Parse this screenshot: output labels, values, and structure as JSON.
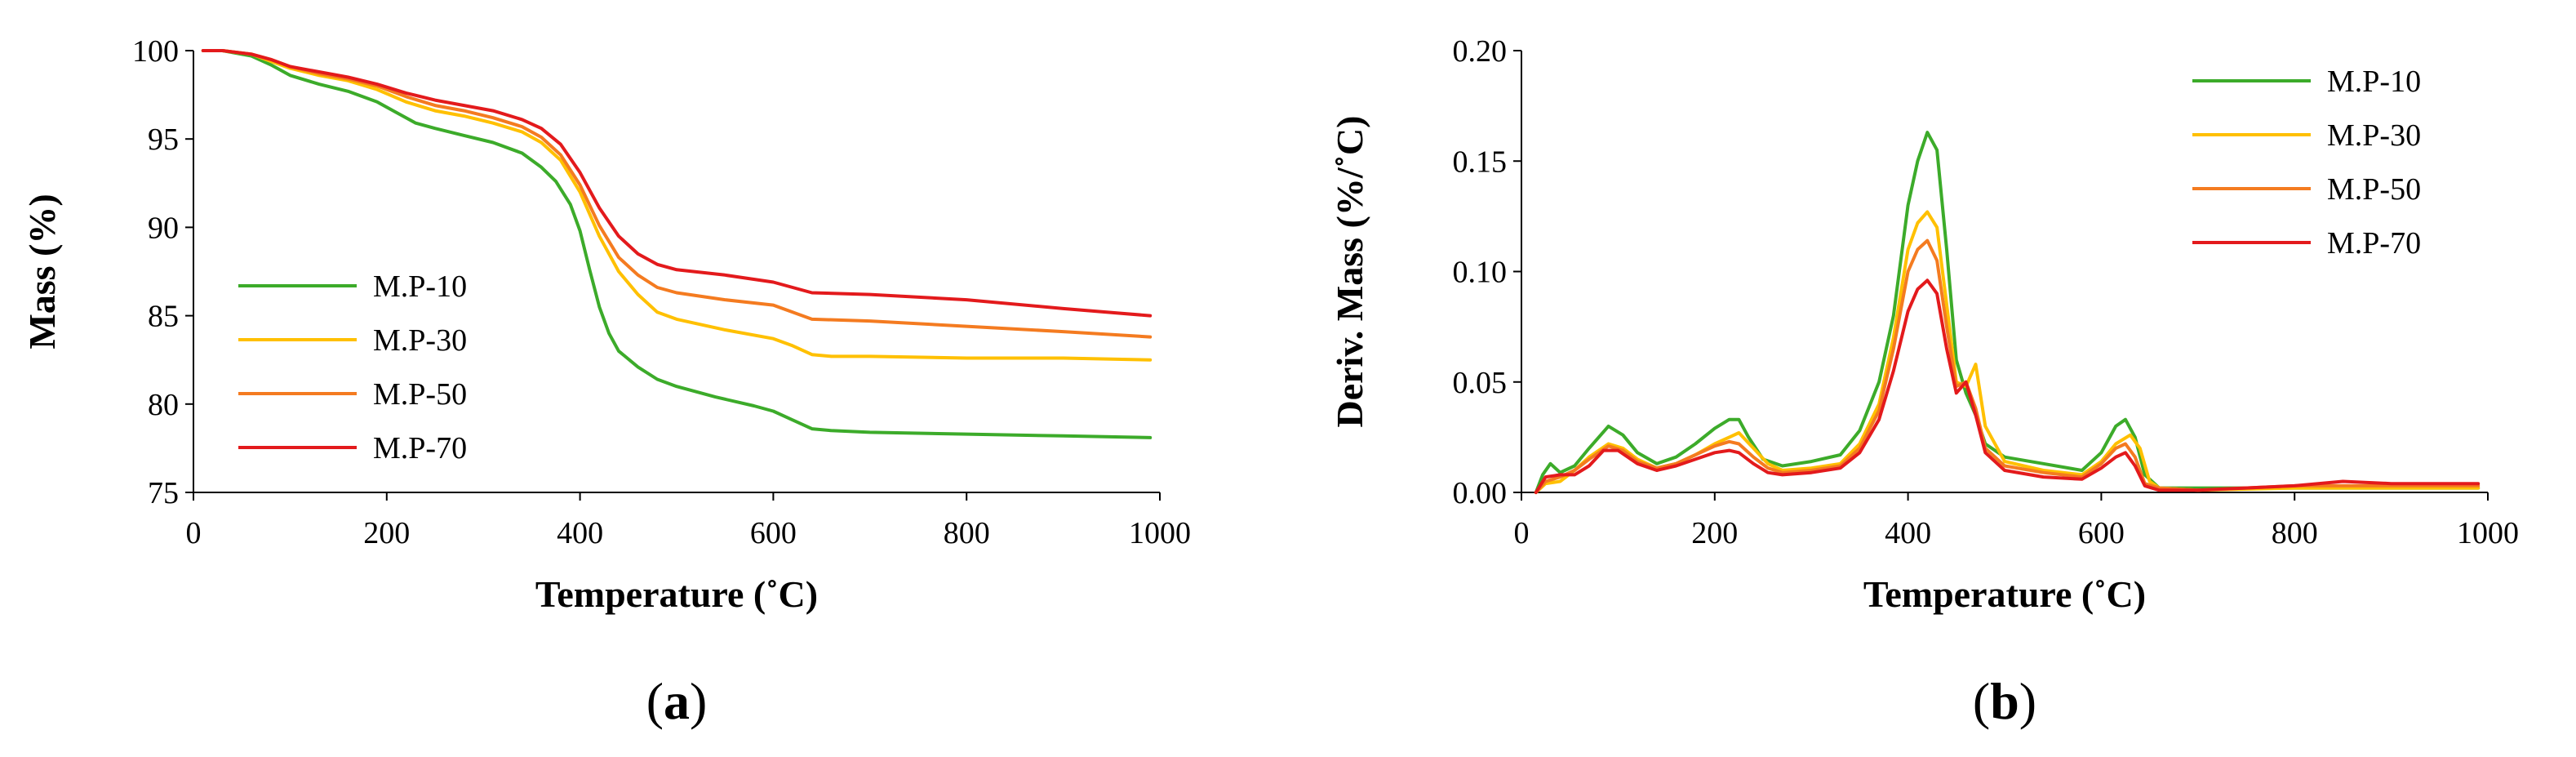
{
  "colors": {
    "M.P-10": "#3cab2a",
    "M.P-30": "#ffc000",
    "M.P-50": "#f47b20",
    "M.P-70": "#e31a1c"
  },
  "chart_data": [
    {
      "panel_label": "a",
      "type": "line",
      "title": "",
      "xlabel": "Temperature (˚C)",
      "ylabel": "Mass (%)",
      "xlim": [
        0,
        1000
      ],
      "ylim": [
        75,
        100
      ],
      "xticks": [
        0,
        200,
        400,
        600,
        800,
        1000
      ],
      "yticks": [
        75,
        80,
        85,
        90,
        95,
        100
      ],
      "xtick_labels": [
        "0",
        "200",
        "400",
        "600",
        "800",
        "1000"
      ],
      "ytick_labels": [
        "75",
        "80",
        "85",
        "90",
        "95",
        "100"
      ],
      "grid": false,
      "legend_position": "bottom-left",
      "series": [
        {
          "name": "M.P-10",
          "color": "#3cab2a",
          "x": [
            10,
            30,
            60,
            80,
            100,
            130,
            160,
            190,
            210,
            230,
            250,
            280,
            310,
            340,
            360,
            375,
            390,
            400,
            410,
            420,
            430,
            440,
            460,
            480,
            500,
            540,
            580,
            600,
            620,
            640,
            660,
            700,
            800,
            900,
            990
          ],
          "y": [
            100,
            100,
            99.7,
            99.2,
            98.6,
            98.1,
            97.7,
            97.1,
            96.5,
            95.9,
            95.6,
            95.2,
            94.8,
            94.2,
            93.4,
            92.6,
            91.3,
            89.8,
            87.6,
            85.5,
            84,
            83,
            82.1,
            81.4,
            81,
            80.4,
            79.9,
            79.6,
            79.1,
            78.6,
            78.5,
            78.4,
            78.3,
            78.2,
            78.1
          ]
        },
        {
          "name": "M.P-30",
          "color": "#ffc000",
          "x": [
            10,
            30,
            60,
            80,
            100,
            130,
            160,
            190,
            220,
            250,
            280,
            310,
            340,
            360,
            380,
            400,
            420,
            440,
            460,
            480,
            500,
            550,
            600,
            620,
            640,
            660,
            700,
            800,
            900,
            990
          ],
          "y": [
            100,
            100,
            99.8,
            99.4,
            99,
            98.6,
            98.3,
            97.8,
            97.1,
            96.6,
            96.3,
            95.9,
            95.4,
            94.8,
            93.8,
            92,
            89.5,
            87.5,
            86.2,
            85.2,
            84.8,
            84.2,
            83.7,
            83.3,
            82.8,
            82.7,
            82.7,
            82.6,
            82.6,
            82.5
          ]
        },
        {
          "name": "M.P-50",
          "color": "#f47b20",
          "x": [
            10,
            30,
            60,
            80,
            100,
            130,
            160,
            190,
            220,
            250,
            280,
            310,
            340,
            360,
            380,
            400,
            420,
            440,
            460,
            480,
            500,
            550,
            600,
            620,
            640,
            700,
            800,
            900,
            990
          ],
          "y": [
            100,
            100,
            99.8,
            99.5,
            99.1,
            98.7,
            98.4,
            98,
            97.4,
            96.9,
            96.6,
            96.2,
            95.7,
            95.1,
            94.1,
            92.4,
            90.1,
            88.3,
            87.3,
            86.6,
            86.3,
            85.9,
            85.6,
            85.2,
            84.8,
            84.7,
            84.4,
            84.1,
            83.8
          ]
        },
        {
          "name": "M.P-70",
          "color": "#e31a1c",
          "x": [
            10,
            30,
            60,
            80,
            100,
            130,
            160,
            190,
            220,
            250,
            280,
            310,
            340,
            360,
            380,
            400,
            420,
            440,
            460,
            480,
            500,
            550,
            600,
            620,
            640,
            700,
            800,
            900,
            990
          ],
          "y": [
            100,
            100,
            99.8,
            99.5,
            99.1,
            98.8,
            98.5,
            98.1,
            97.6,
            97.2,
            96.9,
            96.6,
            96.1,
            95.6,
            94.7,
            93.1,
            91.1,
            89.5,
            88.5,
            87.9,
            87.6,
            87.3,
            86.9,
            86.6,
            86.3,
            86.2,
            85.9,
            85.4,
            85
          ]
        }
      ]
    },
    {
      "panel_label": "b",
      "type": "line",
      "title": "",
      "xlabel": "Temperature (˚C)",
      "ylabel": "Deriv. Mass (%/˚C)",
      "xlim": [
        0,
        1000
      ],
      "ylim": [
        0,
        0.2
      ],
      "xticks": [
        0,
        200,
        400,
        600,
        800,
        1000
      ],
      "yticks": [
        0,
        0.05,
        0.1,
        0.15,
        0.2
      ],
      "xtick_labels": [
        "0",
        "200",
        "400",
        "600",
        "800",
        "1000"
      ],
      "ytick_labels": [
        "0.00",
        "0.05",
        "0.10",
        "0.15",
        "0.20"
      ],
      "grid": false,
      "legend_position": "top-right",
      "series": [
        {
          "name": "M.P-10",
          "color": "#3cab2a",
          "x": [
            15,
            22,
            30,
            40,
            55,
            70,
            90,
            105,
            120,
            140,
            160,
            180,
            200,
            215,
            225,
            235,
            250,
            270,
            300,
            330,
            350,
            370,
            385,
            400,
            410,
            420,
            430,
            440,
            450,
            460,
            470,
            480,
            500,
            540,
            580,
            600,
            615,
            625,
            635,
            645,
            660,
            700,
            800,
            900,
            990
          ],
          "y": [
            0.0,
            0.008,
            0.013,
            0.009,
            0.012,
            0.02,
            0.03,
            0.026,
            0.018,
            0.013,
            0.016,
            0.022,
            0.029,
            0.033,
            0.033,
            0.025,
            0.015,
            0.012,
            0.014,
            0.017,
            0.028,
            0.05,
            0.08,
            0.13,
            0.15,
            0.163,
            0.155,
            0.11,
            0.06,
            0.045,
            0.035,
            0.022,
            0.016,
            0.013,
            0.01,
            0.018,
            0.03,
            0.033,
            0.025,
            0.008,
            0.002,
            0.002,
            0.002,
            0.002,
            0.002
          ]
        },
        {
          "name": "M.P-30",
          "color": "#ffc000",
          "x": [
            15,
            25,
            40,
            55,
            70,
            90,
            105,
            120,
            140,
            160,
            180,
            200,
            215,
            225,
            240,
            255,
            270,
            300,
            330,
            350,
            370,
            385,
            400,
            410,
            420,
            430,
            440,
            450,
            460,
            470,
            480,
            500,
            540,
            580,
            600,
            615,
            630,
            640,
            650,
            660,
            700,
            800,
            900,
            990
          ],
          "y": [
            0.0,
            0.004,
            0.005,
            0.01,
            0.016,
            0.022,
            0.02,
            0.015,
            0.011,
            0.013,
            0.017,
            0.022,
            0.025,
            0.027,
            0.02,
            0.013,
            0.01,
            0.011,
            0.013,
            0.022,
            0.04,
            0.07,
            0.11,
            0.122,
            0.127,
            0.12,
            0.085,
            0.05,
            0.048,
            0.058,
            0.03,
            0.014,
            0.01,
            0.008,
            0.014,
            0.022,
            0.026,
            0.02,
            0.005,
            0.002,
            0.001,
            0.002,
            0.002,
            0.002
          ]
        },
        {
          "name": "M.P-50",
          "color": "#f47b20",
          "x": [
            15,
            25,
            40,
            55,
            70,
            90,
            105,
            120,
            140,
            160,
            180,
            200,
            215,
            225,
            240,
            255,
            270,
            300,
            330,
            350,
            370,
            385,
            400,
            410,
            420,
            430,
            440,
            450,
            460,
            470,
            480,
            500,
            540,
            580,
            600,
            615,
            625,
            635,
            645,
            660,
            700,
            800,
            900,
            990
          ],
          "y": [
            0.0,
            0.005,
            0.007,
            0.01,
            0.015,
            0.021,
            0.019,
            0.014,
            0.011,
            0.013,
            0.017,
            0.021,
            0.023,
            0.022,
            0.016,
            0.011,
            0.009,
            0.01,
            0.012,
            0.02,
            0.037,
            0.065,
            0.1,
            0.11,
            0.114,
            0.105,
            0.075,
            0.048,
            0.05,
            0.038,
            0.02,
            0.012,
            0.009,
            0.007,
            0.013,
            0.02,
            0.022,
            0.016,
            0.004,
            0.002,
            0.001,
            0.003,
            0.003,
            0.003
          ]
        },
        {
          "name": "M.P-70",
          "color": "#e31a1c",
          "x": [
            15,
            25,
            40,
            55,
            70,
            85,
            100,
            120,
            140,
            160,
            180,
            200,
            215,
            225,
            240,
            255,
            270,
            300,
            330,
            350,
            370,
            385,
            400,
            410,
            420,
            430,
            440,
            450,
            460,
            470,
            480,
            500,
            540,
            580,
            600,
            615,
            625,
            635,
            645,
            660,
            700,
            800,
            850,
            900,
            990
          ],
          "y": [
            0.0,
            0.007,
            0.008,
            0.008,
            0.012,
            0.019,
            0.019,
            0.013,
            0.01,
            0.012,
            0.015,
            0.018,
            0.019,
            0.018,
            0.013,
            0.009,
            0.008,
            0.009,
            0.011,
            0.018,
            0.033,
            0.055,
            0.082,
            0.092,
            0.096,
            0.09,
            0.065,
            0.045,
            0.05,
            0.035,
            0.018,
            0.01,
            0.007,
            0.006,
            0.011,
            0.016,
            0.018,
            0.012,
            0.003,
            0.001,
            0.001,
            0.003,
            0.005,
            0.004,
            0.004
          ]
        }
      ]
    }
  ]
}
